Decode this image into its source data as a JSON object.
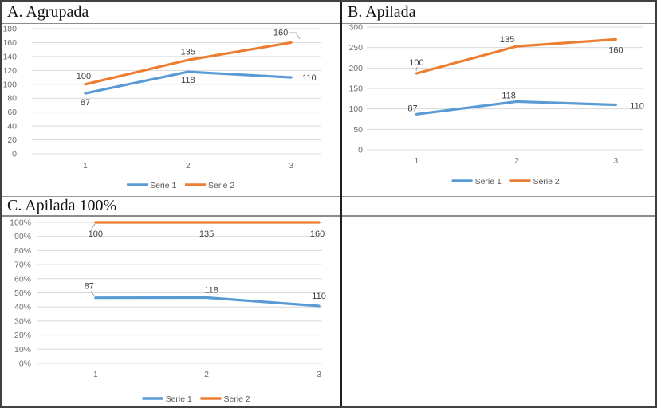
{
  "panels": {
    "a": {
      "title": "A. Agrupada"
    },
    "b": {
      "title": "B. Apilada"
    },
    "c": {
      "title": "C. Apilada 100%"
    }
  },
  "colors": {
    "serie1": "#5B9BD5",
    "serie2": "#ED7D31",
    "gridline": "#D9D9D9",
    "tick_text": "#6e6e6e",
    "data_label_text": "#3f3f3f",
    "legend_text": "#595959",
    "leader_line": "#a6a6a6"
  },
  "chart_data": [
    {
      "id": "A",
      "type": "line",
      "title": "A. Agrupada",
      "subtype": "clustered",
      "categories": [
        "1",
        "2",
        "3"
      ],
      "ylim": [
        0,
        180
      ],
      "ystep": 20,
      "grid": true,
      "legend_position": "bottom",
      "y_tick_labels": [
        "0",
        "20",
        "40",
        "60",
        "80",
        "100",
        "120",
        "140",
        "160",
        "180"
      ],
      "series": [
        {
          "name": "Serie 1",
          "color": "#5B9BD5",
          "values": [
            87,
            118,
            110
          ],
          "plotted": [
            87,
            118,
            110
          ],
          "data_labels": [
            "87",
            "118",
            "110"
          ]
        },
        {
          "name": "Serie 2",
          "color": "#ED7D31",
          "values": [
            100,
            135,
            160
          ],
          "plotted": [
            100,
            135,
            160
          ],
          "data_labels": [
            "100",
            "135",
            "160"
          ]
        }
      ]
    },
    {
      "id": "B",
      "type": "line",
      "title": "B. Apilada",
      "subtype": "stacked",
      "categories": [
        "1",
        "2",
        "3"
      ],
      "ylim": [
        0,
        300
      ],
      "ystep": 50,
      "grid": true,
      "legend_position": "bottom",
      "y_tick_labels": [
        "0",
        "50",
        "100",
        "150",
        "200",
        "250",
        "300"
      ],
      "series": [
        {
          "name": "Serie 1",
          "color": "#5B9BD5",
          "values": [
            87,
            118,
            110
          ],
          "plotted": [
            87,
            118,
            110
          ],
          "data_labels": [
            "87",
            "118",
            "110"
          ]
        },
        {
          "name": "Serie 2",
          "color": "#ED7D31",
          "values": [
            100,
            135,
            160
          ],
          "plotted": [
            187,
            253,
            270
          ],
          "data_labels": [
            "100",
            "135",
            "160"
          ]
        }
      ]
    },
    {
      "id": "C",
      "type": "line",
      "title": "C. Apilada 100%",
      "subtype": "stacked-100",
      "categories": [
        "1",
        "2",
        "3"
      ],
      "ylim": [
        0,
        100
      ],
      "ystep": 10,
      "grid": true,
      "legend_position": "bottom",
      "y_tick_labels": [
        "0%",
        "10%",
        "20%",
        "30%",
        "40%",
        "50%",
        "60%",
        "70%",
        "80%",
        "90%",
        "100%"
      ],
      "series": [
        {
          "name": "Serie 1",
          "color": "#5B9BD5",
          "values": [
            87,
            118,
            110
          ],
          "plotted": [
            46.5,
            46.6,
            40.7
          ],
          "data_labels": [
            "87",
            "118",
            "110"
          ]
        },
        {
          "name": "Serie 2",
          "color": "#ED7D31",
          "values": [
            100,
            135,
            160
          ],
          "plotted": [
            100,
            100,
            100
          ],
          "data_labels": [
            "100",
            "135",
            "160"
          ]
        }
      ]
    }
  ]
}
